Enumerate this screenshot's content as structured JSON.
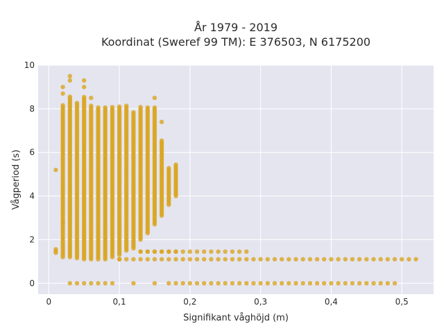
{
  "title_line1": "År 1979 - 2019",
  "title_line2": "Koordinat (Sweref 99 TM): E 376503, N 6175200",
  "chart_data": {
    "type": "scatter",
    "xlabel": "Signifikant våghöjd (m)",
    "ylabel": "Vågperiod (s)",
    "xlim": [
      -0.015,
      0.545
    ],
    "ylim": [
      -0.5,
      10
    ],
    "x_ticks": [
      0,
      0.1,
      0.2,
      0.3,
      0.4,
      0.5
    ],
    "x_tick_labels": [
      "0",
      "0,1",
      "0,2",
      "0,3",
      "0,4",
      "0,5"
    ],
    "y_ticks": [
      0,
      2,
      4,
      6,
      8,
      10
    ],
    "y_tick_labels": [
      "0",
      "2",
      "4",
      "6",
      "8",
      "10"
    ],
    "grid": true,
    "colors": {
      "marker": "#DAA520",
      "plot_bg": "#E5E5F0",
      "grid": "#ffffff"
    },
    "columns": [
      {
        "x": 0.01,
        "ymin": 1.4,
        "ymax": 1.6,
        "extra": [
          5.2
        ]
      },
      {
        "x": 0.02,
        "ymin": 1.2,
        "ymax": 8.2,
        "extra": [
          8.7,
          9.0,
          2.8
        ]
      },
      {
        "x": 0.03,
        "ymin": 1.2,
        "ymax": 8.6,
        "extra": [
          9.3,
          9.5
        ]
      },
      {
        "x": 0.04,
        "ymin": 1.15,
        "ymax": 8.3,
        "extra": []
      },
      {
        "x": 0.05,
        "ymin": 1.1,
        "ymax": 8.6,
        "extra": [
          9.0,
          9.3
        ]
      },
      {
        "x": 0.06,
        "ymin": 1.1,
        "ymax": 8.2,
        "extra": [
          8.5
        ]
      },
      {
        "x": 0.07,
        "ymin": 1.1,
        "ymax": 8.1,
        "extra": []
      },
      {
        "x": 0.08,
        "ymin": 1.1,
        "ymax": 8.1,
        "extra": []
      },
      {
        "x": 0.09,
        "ymin": 1.2,
        "ymax": 8.1,
        "extra": []
      },
      {
        "x": 0.1,
        "ymin": 1.3,
        "ymax": 8.1,
        "extra": [
          1.1
        ]
      },
      {
        "x": 0.11,
        "ymin": 1.5,
        "ymax": 8.2,
        "extra": []
      },
      {
        "x": 0.12,
        "ymin": 1.6,
        "ymax": 7.9,
        "extra": []
      },
      {
        "x": 0.13,
        "ymin": 2.0,
        "ymax": 8.1,
        "extra": [
          1.45
        ]
      },
      {
        "x": 0.14,
        "ymin": 2.3,
        "ymax": 8.1,
        "extra": [
          1.45
        ]
      },
      {
        "x": 0.15,
        "ymin": 2.7,
        "ymax": 8.1,
        "extra": [
          8.5,
          1.45
        ]
      },
      {
        "x": 0.16,
        "ymin": 3.1,
        "ymax": 6.6,
        "extra": [
          7.4,
          1.45
        ]
      },
      {
        "x": 0.17,
        "ymin": 3.6,
        "ymax": 5.3,
        "extra": [
          1.45
        ]
      },
      {
        "x": 0.18,
        "ymin": 4.0,
        "ymax": 5.5,
        "extra": [
          1.45
        ]
      }
    ],
    "row_145": {
      "y": 1.45,
      "x_from": 0.13,
      "x_to": 0.28,
      "step": 0.01
    },
    "row_110": {
      "y": 1.1,
      "x_from": 0.1,
      "x_to": 0.52,
      "step": 0.01
    },
    "row_0": {
      "y": 0.0,
      "x_values": [
        0.03,
        0.04,
        0.05,
        0.06,
        0.07,
        0.08,
        0.09,
        0.12,
        0.15,
        0.17,
        0.18,
        0.19,
        0.2,
        0.21,
        0.22,
        0.23,
        0.24,
        0.25,
        0.26,
        0.27,
        0.28,
        0.29,
        0.3,
        0.31,
        0.32,
        0.33,
        0.34,
        0.35,
        0.36,
        0.37,
        0.38,
        0.39,
        0.4,
        0.41,
        0.42,
        0.43,
        0.44,
        0.45,
        0.46,
        0.47,
        0.48,
        0.49
      ]
    }
  }
}
